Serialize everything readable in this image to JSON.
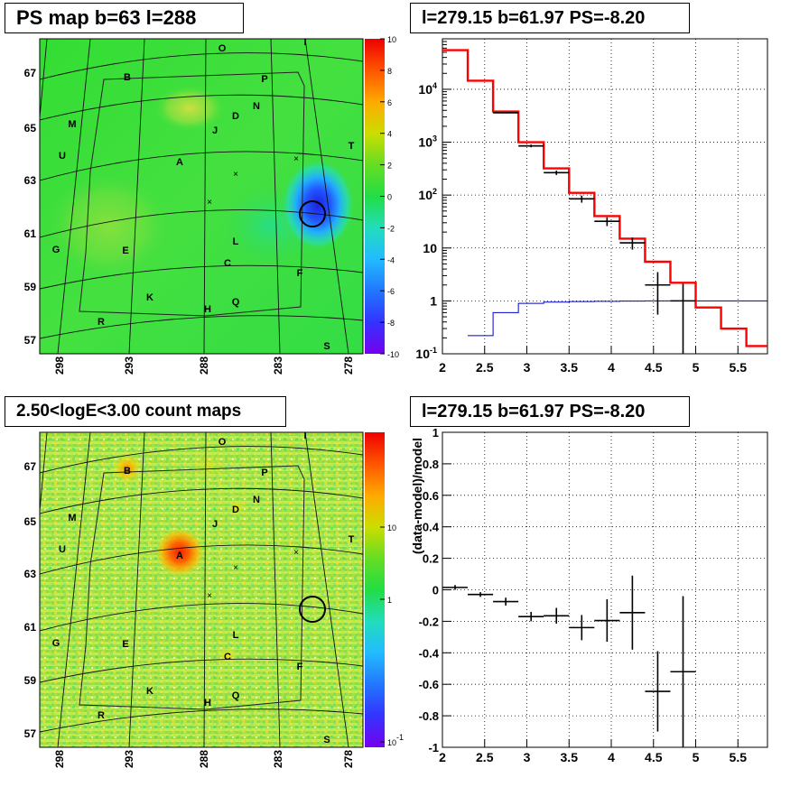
{
  "panels": {
    "tl_title": "PS map b=63 l=288",
    "tr_title": "l=279.15 b=61.97 PS=-8.20",
    "bl_title": "2.50<logE<3.00 count maps",
    "br_title": "l=279.15 b=61.97 PS=-8.20"
  },
  "chart_data": [
    {
      "type": "heatmap",
      "name": "ps-map",
      "title": "PS map b=63 l=288",
      "x_ticks": [
        "298",
        "293",
        "288",
        "283",
        "278"
      ],
      "y_ticks": [
        "67",
        "65",
        "63",
        "61",
        "59",
        "57"
      ],
      "colorbar_ticks": [
        "10",
        "8",
        "6",
        "4",
        "2",
        "0",
        "-2",
        "-4",
        "-6",
        "-8",
        "-10"
      ],
      "colorbar_range": [
        -10,
        10
      ],
      "source_labels": [
        "O",
        "I",
        "B",
        "P",
        "N",
        "D",
        "J",
        "M",
        "U",
        "A",
        "T",
        "L",
        "G",
        "E",
        "C",
        "F",
        "K",
        "H",
        "Q",
        "R",
        "S"
      ]
    },
    {
      "type": "line",
      "name": "spectrum",
      "title": "l=279.15 b=61.97 PS=-8.20",
      "x_range": [
        2,
        5.85
      ],
      "y_scale": "log",
      "y_range": [
        0.1,
        90000
      ],
      "x_ticks": [
        "2",
        "2.5",
        "3",
        "3.5",
        "4",
        "4.5",
        "5",
        "5.5"
      ],
      "y_ticks": [
        "10^{-1}",
        "1",
        "10",
        "10^{2}",
        "10^{3}",
        "10^{4}"
      ],
      "grid": true,
      "model_steps": {
        "color": "#ff0000",
        "edges": [
          2,
          2.3,
          2.6,
          2.9,
          3.2,
          3.5,
          3.8,
          4.1,
          4.4,
          4.7,
          5.0,
          5.3,
          5.6,
          5.85
        ],
        "values": [
          55000,
          14500,
          3800,
          1000,
          320,
          110,
          40,
          15,
          5.5,
          2.2,
          0.75,
          0.3,
          0.14
        ]
      },
      "bg_steps": {
        "color": "#0000cc",
        "edges": [
          2.3,
          2.6,
          2.9,
          3.2,
          3.5,
          3.8,
          4.1,
          4.4,
          4.7,
          5.0,
          5.3,
          5.6,
          5.85
        ],
        "values": [
          0.22,
          0.6,
          0.9,
          0.95,
          0.97,
          0.98,
          0.99,
          1.0,
          1.0,
          1.0,
          1.0,
          1.0
        ]
      },
      "data_points": [
        {
          "x": 2.75,
          "y": 3600,
          "xerr": 0.15,
          "ylo": 3500,
          "yhi": 3700
        },
        {
          "x": 3.05,
          "y": 850,
          "xerr": 0.15,
          "ylo": 800,
          "yhi": 900
        },
        {
          "x": 3.35,
          "y": 265,
          "xerr": 0.15,
          "ylo": 240,
          "yhi": 290
        },
        {
          "x": 3.65,
          "y": 85,
          "xerr": 0.15,
          "ylo": 72,
          "yhi": 98
        },
        {
          "x": 3.95,
          "y": 32,
          "xerr": 0.15,
          "ylo": 26,
          "yhi": 38
        },
        {
          "x": 4.25,
          "y": 12.5,
          "xerr": 0.15,
          "ylo": 9.3,
          "yhi": 15.7
        },
        {
          "x": 4.55,
          "y": 2.0,
          "xerr": 0.15,
          "ylo": 0.55,
          "yhi": 3.5
        },
        {
          "x": 4.85,
          "y": 1.0,
          "xerr": 0.15,
          "ylo": 0.1,
          "yhi": 2.1
        }
      ]
    },
    {
      "type": "heatmap",
      "name": "count-map",
      "title": "2.50<logE<3.00 count maps",
      "x_ticks": [
        "298",
        "293",
        "288",
        "283",
        "278"
      ],
      "y_ticks": [
        "67",
        "65",
        "63",
        "61",
        "59",
        "57"
      ],
      "colorbar_ticks": [
        "10",
        "1",
        "10^{-1}"
      ],
      "colorbar_scale": "log",
      "source_labels": [
        "O",
        "I",
        "B",
        "P",
        "N",
        "D",
        "J",
        "M",
        "U",
        "A",
        "T",
        "L",
        "G",
        "E",
        "C",
        "F",
        "K",
        "H",
        "Q",
        "R",
        "S"
      ]
    },
    {
      "type": "scatter",
      "name": "residual",
      "title": "l=279.15 b=61.97 PS=-8.20",
      "ylabel": "(data-model)/model",
      "x_range": [
        2,
        5.85
      ],
      "y_range": [
        -1,
        1
      ],
      "x_ticks": [
        "2",
        "2.5",
        "3",
        "3.5",
        "4",
        "4.5",
        "5",
        "5.5"
      ],
      "y_ticks": [
        "1",
        "0.8",
        "0.6",
        "0.4",
        "0.2",
        "0",
        "-0.2",
        "-0.4",
        "-0.6",
        "-0.8",
        "-1"
      ],
      "grid": true,
      "data_points": [
        {
          "x": 2.15,
          "y": 0.015,
          "xerr": 0.15,
          "ylo": 0.0,
          "yhi": 0.03
        },
        {
          "x": 2.45,
          "y": -0.03,
          "xerr": 0.15,
          "ylo": -0.045,
          "yhi": -0.015
        },
        {
          "x": 2.75,
          "y": -0.075,
          "xerr": 0.15,
          "ylo": -0.1,
          "yhi": -0.05
        },
        {
          "x": 3.05,
          "y": -0.17,
          "xerr": 0.15,
          "ylo": -0.2,
          "yhi": -0.14
        },
        {
          "x": 3.35,
          "y": -0.165,
          "xerr": 0.15,
          "ylo": -0.215,
          "yhi": -0.115
        },
        {
          "x": 3.65,
          "y": -0.24,
          "xerr": 0.15,
          "ylo": -0.32,
          "yhi": -0.16
        },
        {
          "x": 3.95,
          "y": -0.195,
          "xerr": 0.15,
          "ylo": -0.33,
          "yhi": -0.06
        },
        {
          "x": 4.25,
          "y": -0.145,
          "xerr": 0.15,
          "ylo": -0.38,
          "yhi": 0.09
        },
        {
          "x": 4.55,
          "y": -0.645,
          "xerr": 0.15,
          "ylo": -0.9,
          "yhi": -0.39
        },
        {
          "x": 4.85,
          "y": -0.52,
          "xerr": 0.15,
          "ylo": -1.0,
          "yhi": -0.04
        }
      ]
    }
  ]
}
